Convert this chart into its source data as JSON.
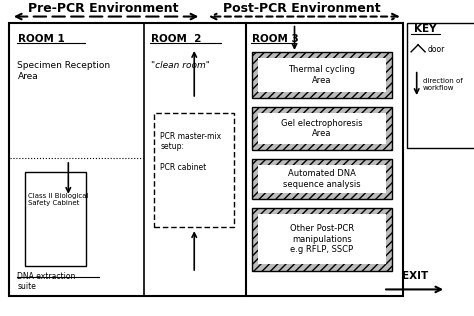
{
  "title_pre": "Pre-PCR Environment",
  "title_post": "Post-PCR Environment",
  "room1_label": "ROOM 1",
  "room2_label": "ROOM  2",
  "room3_label": "ROOM 3",
  "room1_text1": "Specimen Reception\nArea",
  "room2_text1": "\"clean room\"",
  "pcr_box_text": "PCR master-mix\nsetup:\n\nPCR cabinet",
  "room3_boxes": [
    "Thermal cycling\nArea",
    "Gel electrophoresis\nArea",
    "Automated DNA\nsequence analysis",
    "Other Post-PCR\nmanipulations\ne.g RFLP, SSCP"
  ],
  "class2_label": "Class II Biological\nSafety Cabinet",
  "dna_label": "DNA extraction\nsuite",
  "key_label": "KEY",
  "key_door": "door",
  "key_workflow": "direction of\nworkflow",
  "exit_label": "EXIT",
  "bg_color": "#ffffff"
}
